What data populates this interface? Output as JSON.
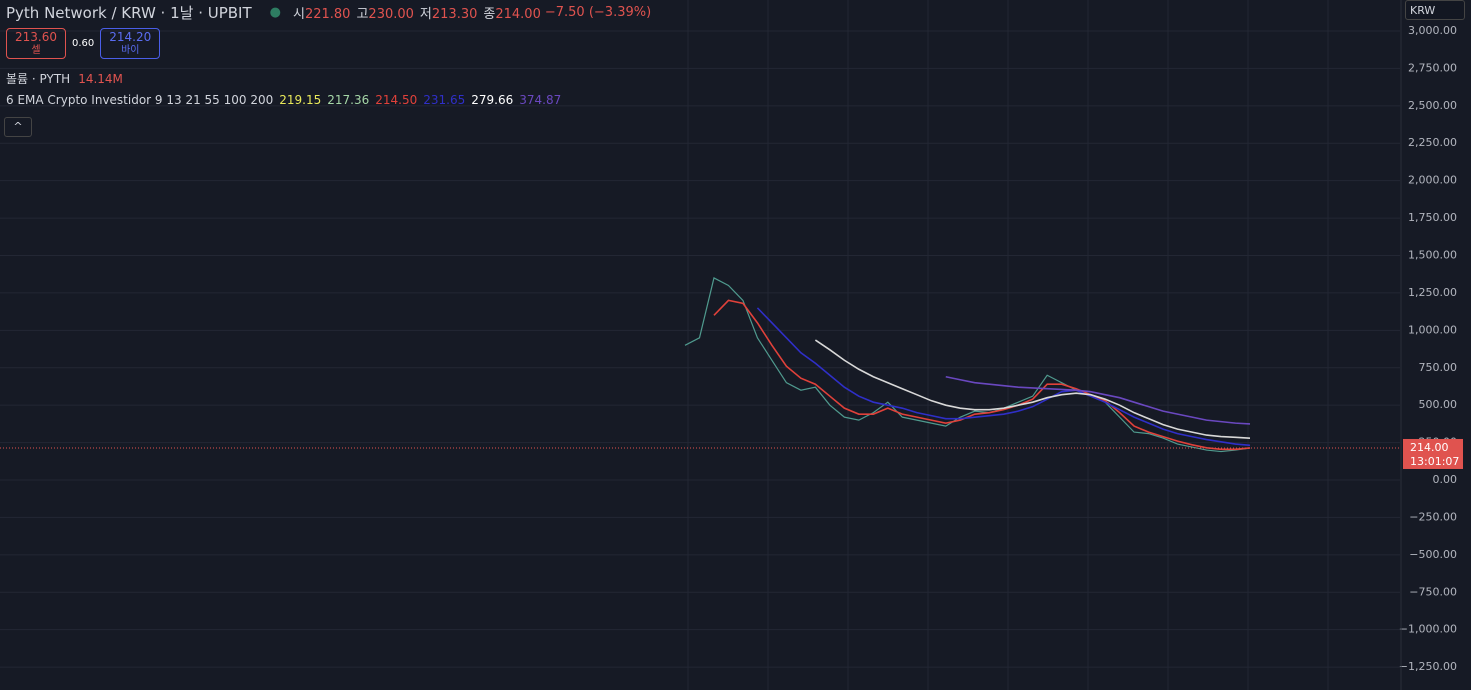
{
  "header": {
    "title": "Pyth Network / KRW · 1날 · UPBIT",
    "ohlc": [
      {
        "label": "시",
        "value": "221.80"
      },
      {
        "label": "고",
        "value": "230.00"
      },
      {
        "label": "저",
        "value": "213.30"
      },
      {
        "label": "종",
        "value": "214.00"
      }
    ],
    "change": "−7.50 (−3.39%)",
    "sell": {
      "price": "213.60",
      "label": "셀"
    },
    "spread": "0.60",
    "buy": {
      "price": "214.20",
      "label": "바이"
    },
    "volume": {
      "label": "볼륨 · PYTH",
      "value": "14.14M"
    },
    "indicator": {
      "label": "6 EMA Crypto Investidor 9 13 21 55 100 200",
      "values": [
        {
          "text": "219.15",
          "color": "#e8e85a"
        },
        {
          "text": "217.36",
          "color": "#a5d6a7"
        },
        {
          "text": "214.50",
          "color": "#e0413a"
        },
        {
          "text": "231.65",
          "color": "#2f2fc8"
        },
        {
          "text": "279.66",
          "color": "#ffffff"
        },
        {
          "text": "374.87",
          "color": "#6a48c0"
        }
      ]
    },
    "currency": "KRW"
  },
  "chart_data": {
    "type": "line",
    "categories": [
      null,
      null,
      null,
      null,
      null,
      null,
      null,
      null,
      null,
      null,
      null,
      null,
      null,
      null,
      null,
      null,
      null,
      null,
      null,
      null,
      null,
      null,
      null,
      null,
      null,
      null,
      null,
      null,
      null,
      null,
      null,
      null,
      null,
      null,
      null,
      null,
      null,
      null,
      null,
      null
    ],
    "series": [
      {
        "name": "PYTH",
        "color": "#4f9a8e",
        "values": [
          900,
          950,
          1350,
          1300,
          1200,
          950,
          800,
          650,
          600,
          620,
          500,
          420,
          400,
          450,
          520,
          420,
          400,
          380,
          360,
          420,
          460,
          450,
          480,
          520,
          560,
          700,
          650,
          600,
          560,
          520,
          420,
          320,
          310,
          280,
          240,
          220,
          200,
          190,
          200,
          214
        ]
      },
      {
        "name": "EMA 21",
        "color": "#e0413a",
        "values": [
          null,
          null,
          1100,
          1200,
          1180,
          1050,
          900,
          760,
          680,
          640,
          560,
          480,
          440,
          440,
          480,
          440,
          420,
          400,
          380,
          400,
          440,
          450,
          470,
          500,
          540,
          640,
          640,
          610,
          570,
          530,
          450,
          360,
          320,
          290,
          260,
          235,
          215,
          205,
          205,
          214.5
        ]
      },
      {
        "name": "EMA 55",
        "color": "#2f2fc8",
        "values": [
          null,
          null,
          null,
          null,
          null,
          1150,
          1050,
          950,
          850,
          780,
          700,
          620,
          560,
          520,
          500,
          480,
          450,
          430,
          410,
          410,
          420,
          430,
          440,
          460,
          490,
          540,
          590,
          600,
          560,
          520,
          470,
          420,
          380,
          340,
          310,
          290,
          270,
          255,
          240,
          231.65
        ]
      },
      {
        "name": "EMA 100",
        "color": "#d8d8d8",
        "values": [
          null,
          null,
          null,
          null,
          null,
          null,
          null,
          null,
          null,
          935,
          870,
          800,
          740,
          690,
          650,
          610,
          570,
          530,
          500,
          480,
          470,
          470,
          480,
          500,
          520,
          550,
          570,
          580,
          570,
          540,
          500,
          450,
          410,
          370,
          340,
          320,
          300,
          290,
          285,
          279.66
        ]
      },
      {
        "name": "EMA 200",
        "color": "#6a48c0",
        "values": [
          null,
          null,
          null,
          null,
          null,
          null,
          null,
          null,
          null,
          null,
          null,
          null,
          null,
          null,
          null,
          null,
          null,
          null,
          690,
          670,
          650,
          640,
          630,
          620,
          615,
          610,
          605,
          600,
          590,
          570,
          550,
          520,
          490,
          460,
          440,
          420,
          400,
          390,
          380,
          374.87
        ]
      }
    ],
    "ylim": [
      -1403,
      3207
    ],
    "yticks": [
      {
        "value": -1250,
        "label": "−1,250.00"
      },
      {
        "value": -1000,
        "label": "−1,000.00"
      },
      {
        "value": -750,
        "label": "−750.00"
      },
      {
        "value": -500,
        "label": "−500.00"
      },
      {
        "value": -250,
        "label": "−250.00"
      },
      {
        "value": 0,
        "label": "0.00"
      },
      {
        "value": 250,
        "label": "250.00"
      },
      {
        "value": 500,
        "label": "500.00"
      },
      {
        "value": 750,
        "label": "750.00"
      },
      {
        "value": 1000,
        "label": "1,000.00"
      },
      {
        "value": 1250,
        "label": "1,250.00"
      },
      {
        "value": 1500,
        "label": "1,500.00"
      },
      {
        "value": 1750,
        "label": "1,750.00"
      },
      {
        "value": 2000,
        "label": "2,000.00"
      },
      {
        "value": 2250,
        "label": "2,250.00"
      },
      {
        "value": 2500,
        "label": "2,500.00"
      },
      {
        "value": 2750,
        "label": "2,750.00"
      },
      {
        "value": 3000,
        "label": "3,000.00"
      }
    ],
    "grid": true,
    "last_price": {
      "value": 214,
      "label": "214.00",
      "countdown": "13:01:07",
      "color": "#e0534f"
    }
  }
}
